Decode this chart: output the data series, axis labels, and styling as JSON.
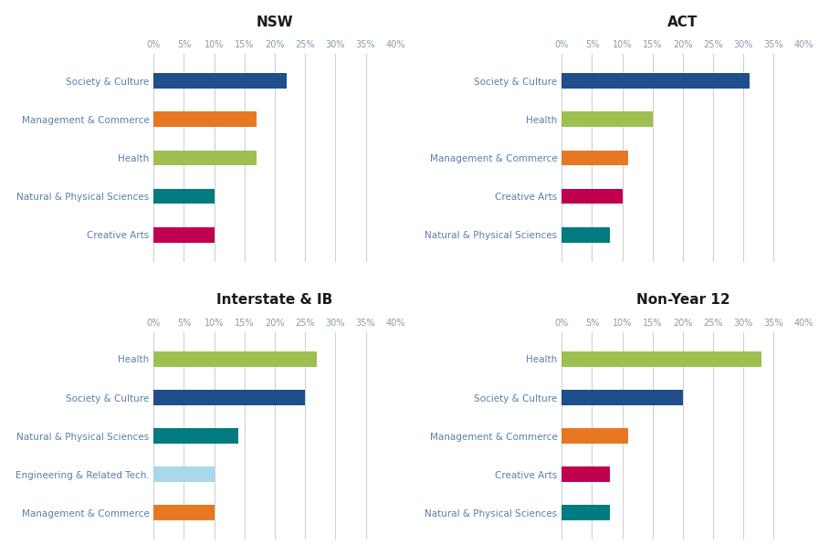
{
  "subplots": [
    {
      "title": "NSW",
      "categories": [
        "Creative Arts",
        "Natural & Physical Sciences",
        "Health",
        "Management & Commerce",
        "Society & Culture"
      ],
      "values": [
        10,
        10,
        17,
        17,
        22
      ],
      "colors": [
        "#c0004e",
        "#007b80",
        "#9dc050",
        "#e87722",
        "#1f4e8c"
      ]
    },
    {
      "title": "ACT",
      "categories": [
        "Natural & Physical Sciences",
        "Creative Arts",
        "Management & Commerce",
        "Health",
        "Society & Culture"
      ],
      "values": [
        8,
        10,
        11,
        15,
        31
      ],
      "colors": [
        "#007b80",
        "#c0004e",
        "#e87722",
        "#9dc050",
        "#1f4e8c"
      ]
    },
    {
      "title": "Interstate & IB",
      "categories": [
        "Management & Commerce",
        "Engineering & Related Tech.",
        "Natural & Physical Sciences",
        "Society & Culture",
        "Health"
      ],
      "values": [
        10,
        10,
        14,
        25,
        27
      ],
      "colors": [
        "#e87722",
        "#a8d8ea",
        "#007b80",
        "#1f4e8c",
        "#9dc050"
      ]
    },
    {
      "title": "Non-Year 12",
      "categories": [
        "Natural & Physical Sciences",
        "Creative Arts",
        "Management & Commerce",
        "Society & Culture",
        "Health"
      ],
      "values": [
        8,
        8,
        11,
        20,
        33
      ],
      "colors": [
        "#007b80",
        "#c0004e",
        "#e87722",
        "#1f4e8c",
        "#9dc050"
      ]
    }
  ],
  "xlim": [
    0,
    40
  ],
  "xticks": [
    0,
    5,
    10,
    15,
    20,
    25,
    30,
    35,
    40
  ],
  "label_color": "#5b7fa6",
  "title_color": "#1a1a1a",
  "grid_color": "#d0d0d0",
  "tick_color": "#8899aa",
  "bg_color": "#ffffff"
}
